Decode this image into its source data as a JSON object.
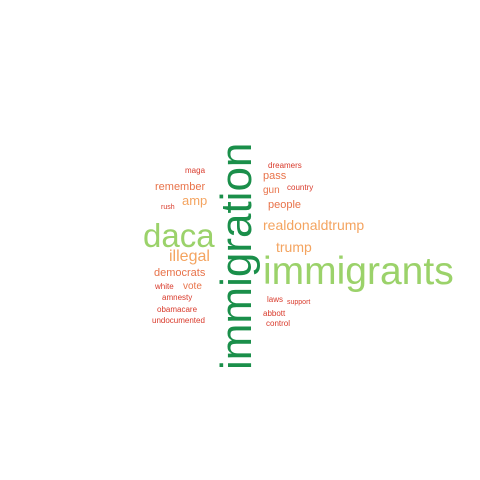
{
  "word_cloud": {
    "words": {
      "immigration": "immigration",
      "immigrants": "immigrants",
      "daca": "daca",
      "illegal": "illegal",
      "realdonaldtrump": "realdonaldtrump",
      "trump": "trump",
      "amp": "amp",
      "remember": "remember",
      "democrats": "democrats",
      "people": "people",
      "pass": "pass",
      "gun": "gun",
      "vote": "vote",
      "maga": "maga",
      "dreamers": "dreamers",
      "country": "country",
      "rush": "rush",
      "white": "white",
      "amnesty": "amnesty",
      "obamacare": "obamacare",
      "undocumented": "undocumented",
      "laws": "laws",
      "support": "support",
      "abbott": "abbott",
      "control": "control"
    },
    "colors": {
      "dark_green": "#1a8f4a",
      "light_green": "#9bd26a",
      "orange": "#f4a460",
      "coral": "#e8734a",
      "red": "#d93a2b"
    }
  }
}
